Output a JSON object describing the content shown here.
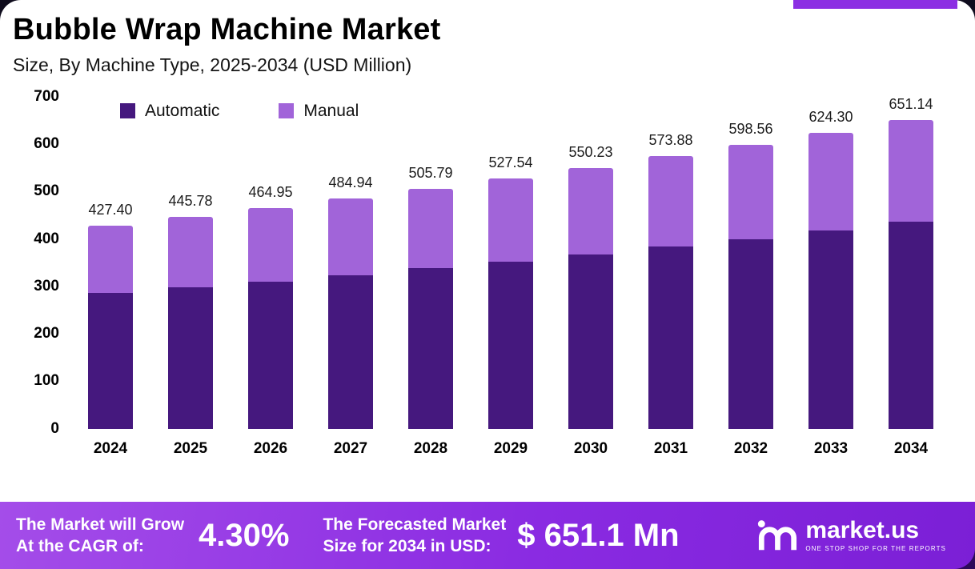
{
  "header": {
    "title": "Bubble Wrap Machine Market",
    "subtitle": "Size, By Machine Type, 2025-2034 (USD Million)"
  },
  "chart_data": {
    "type": "bar",
    "stacked": true,
    "title": "Bubble Wrap Machine Market Size, By Machine Type, 2025-2034 (USD Million)",
    "categories": [
      "2024",
      "2025",
      "2026",
      "2027",
      "2028",
      "2029",
      "2030",
      "2031",
      "2032",
      "2033",
      "2034"
    ],
    "series": [
      {
        "name": "Automatic",
        "color": "#45187E",
        "values": [
          285.5,
          297.8,
          310.6,
          324.0,
          337.9,
          352.5,
          367.7,
          383.5,
          400.0,
          417.2,
          436.3
        ]
      },
      {
        "name": "Manual",
        "color": "#A164D9",
        "values": [
          141.9,
          148.0,
          154.3,
          160.9,
          167.9,
          175.0,
          182.5,
          190.4,
          198.6,
          207.1,
          214.8
        ]
      }
    ],
    "totals": [
      427.4,
      445.78,
      464.95,
      484.94,
      505.79,
      527.54,
      550.23,
      573.88,
      598.56,
      624.3,
      651.14
    ],
    "total_labels": [
      "427.40",
      "445.78",
      "464.95",
      "484.94",
      "505.79",
      "527.54",
      "550.23",
      "573.88",
      "598.56",
      "624.30",
      "651.14"
    ],
    "ylim": [
      0,
      700
    ],
    "yticks": [
      0,
      100,
      200,
      300,
      400,
      500,
      600,
      700
    ],
    "grid": false,
    "legend_position": "top-left"
  },
  "footer": {
    "cagr_label_lines": [
      "The Market will Grow",
      "At the CAGR of:"
    ],
    "cagr_value": "4.30%",
    "forecast_label_lines": [
      "The Forecasted Market",
      "Size for 2034 in USD:"
    ],
    "forecast_value": "$ 651.1 Mn",
    "brand": "market.us",
    "brand_tagline": "ONE STOP SHOP FOR THE REPORTS"
  }
}
